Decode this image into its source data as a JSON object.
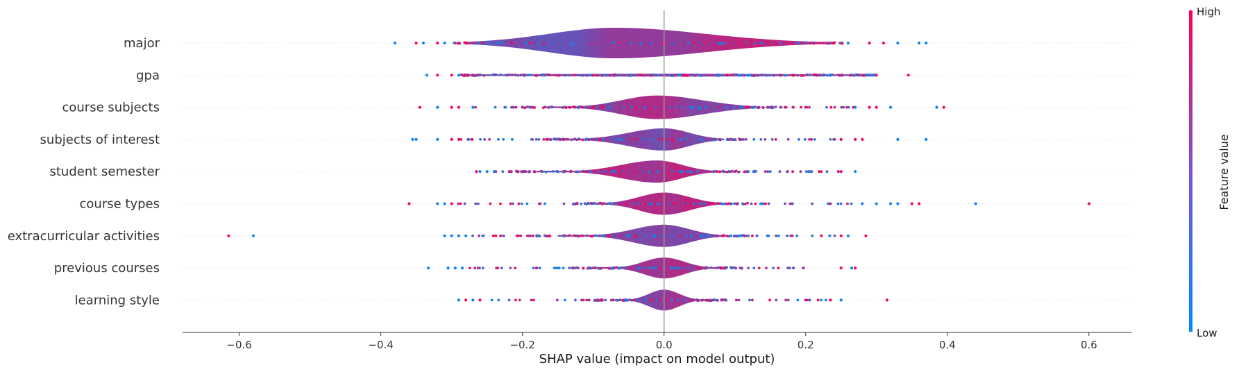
{
  "chart_data": {
    "type": "scatter",
    "variant": "shap-violin-summary",
    "xlabel": "SHAP value (impact on model output)",
    "xlim": [
      -0.68,
      0.66
    ],
    "x_ticks": [
      -0.6,
      -0.4,
      -0.2,
      0.0,
      0.2,
      0.4,
      0.6
    ],
    "x_tick_labels": [
      "−0.6",
      "−0.4",
      "−0.2",
      "0.0",
      "0.2",
      "0.4",
      "0.6"
    ],
    "grid": false,
    "zero_line": true,
    "colorbar": {
      "label": "Feature value",
      "high_label": "High",
      "low_label": "Low",
      "low_color": "#008bfb",
      "high_color": "#ff0051",
      "placement": "right"
    },
    "features": [
      {
        "name": "major",
        "x_min": -0.38,
        "x_max": 0.37,
        "outliers": [
          -0.38,
          -0.35,
          -0.34,
          -0.32,
          -0.31,
          -0.29,
          -0.28,
          0.24,
          0.26,
          0.29,
          0.31,
          0.33,
          0.36,
          0.37
        ]
      },
      {
        "name": "gpa",
        "x_min": -0.335,
        "x_max": 0.345,
        "outliers": [
          -0.335,
          -0.32,
          -0.3,
          -0.29,
          -0.28,
          0.3,
          0.345
        ]
      },
      {
        "name": "course subjects",
        "x_min": -0.345,
        "x_max": 0.395,
        "outliers": [
          -0.345,
          -0.32,
          -0.3,
          -0.29,
          -0.27,
          0.27,
          0.29,
          0.3,
          0.32,
          0.385,
          0.395
        ]
      },
      {
        "name": "subjects of interest",
        "x_min": -0.355,
        "x_max": 0.37,
        "outliers": [
          -0.355,
          -0.35,
          -0.32,
          -0.3,
          -0.29,
          0.25,
          0.27,
          0.28,
          0.33,
          0.37
        ]
      },
      {
        "name": "student semester",
        "x_min": -0.265,
        "x_max": 0.27,
        "outliers": [
          -0.265,
          -0.26,
          -0.25,
          -0.24,
          0.25,
          0.27
        ]
      },
      {
        "name": "course types",
        "x_min": -0.36,
        "x_max": 0.6,
        "outliers": [
          -0.36,
          -0.32,
          -0.31,
          -0.3,
          0.28,
          0.3,
          0.32,
          0.33,
          0.35,
          0.36,
          0.44,
          0.6
        ]
      },
      {
        "name": "extracurricular activities",
        "x_min": -0.615,
        "x_max": 0.285,
        "outliers": [
          -0.615,
          -0.58,
          -0.31,
          -0.3,
          -0.29,
          -0.28,
          0.25,
          0.26,
          0.285
        ]
      },
      {
        "name": "previous courses",
        "x_min": -0.333,
        "x_max": 0.27,
        "outliers": [
          -0.333,
          -0.305,
          -0.295,
          -0.285,
          0.25,
          0.265,
          0.27
        ]
      },
      {
        "name": "learning style",
        "x_min": -0.29,
        "x_max": 0.315,
        "outliers": [
          -0.29,
          -0.28,
          -0.27,
          -0.26,
          0.235,
          0.25,
          0.315
        ]
      }
    ]
  }
}
